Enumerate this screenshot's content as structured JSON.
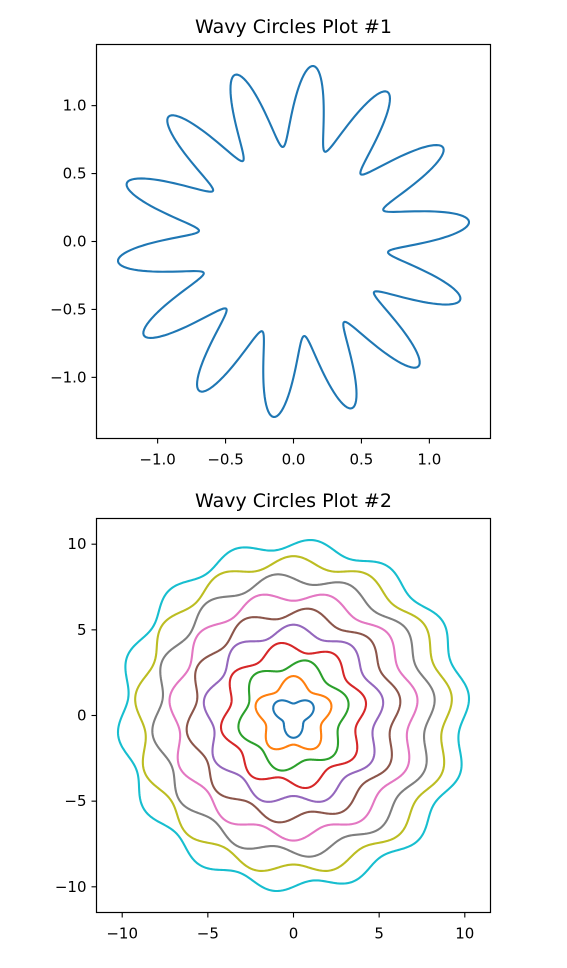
{
  "chart_data": [
    {
      "type": "line",
      "title": "Wavy Circles Plot #1",
      "xlabel": "",
      "ylabel": "",
      "xlim": [
        -1.45,
        1.45
      ],
      "ylim": [
        -1.45,
        1.45
      ],
      "xticks": [
        -1.0,
        -0.5,
        0.0,
        0.5,
        1.0
      ],
      "yticks": [
        -1.0,
        -0.5,
        0.0,
        0.5,
        1.0
      ],
      "xtick_labels": [
        "−1.0",
        "−0.5",
        "0.0",
        "0.5",
        "1.0"
      ],
      "ytick_labels": [
        "−1.0",
        "−0.5",
        "0.0",
        "0.5",
        "1.0"
      ],
      "aspect": "equal",
      "grid": false,
      "series": [
        {
          "radius": 1.0,
          "amplitude": 0.3,
          "waves": 14,
          "color": "#1f77b4"
        }
      ]
    },
    {
      "type": "line",
      "title": "Wavy Circles Plot #2",
      "xlabel": "",
      "ylabel": "",
      "xlim": [
        -11.5,
        11.5
      ],
      "ylim": [
        -11.5,
        11.5
      ],
      "xticks": [
        -10,
        -5,
        0,
        5,
        10
      ],
      "yticks": [
        -10,
        -5,
        0,
        5,
        10
      ],
      "xtick_labels": [
        "−10",
        "−5",
        "0",
        "5",
        "10"
      ],
      "ytick_labels": [
        "−10",
        "−5",
        "0",
        "5",
        "10"
      ],
      "aspect": "equal",
      "grid": false,
      "series": [
        {
          "radius": 1,
          "amplitude": 0.3,
          "waves": 3,
          "color": "#1f77b4"
        },
        {
          "radius": 2,
          "amplitude": 0.3,
          "waves": 5,
          "color": "#ff7f0e"
        },
        {
          "radius": 3,
          "amplitude": 0.3,
          "waves": 6,
          "color": "#2ca02c"
        },
        {
          "radius": 4,
          "amplitude": 0.3,
          "waves": 8,
          "color": "#d62728"
        },
        {
          "radius": 5,
          "amplitude": 0.3,
          "waves": 9,
          "color": "#9467bd"
        },
        {
          "radius": 6,
          "amplitude": 0.3,
          "waves": 10,
          "color": "#8c564b"
        },
        {
          "radius": 7,
          "amplitude": 0.3,
          "waves": 11,
          "color": "#e377c2"
        },
        {
          "radius": 8,
          "amplitude": 0.3,
          "waves": 12,
          "color": "#7f7f7f"
        },
        {
          "radius": 9,
          "amplitude": 0.3,
          "waves": 13,
          "color": "#bcbd22"
        },
        {
          "radius": 10,
          "amplitude": 0.3,
          "waves": 14,
          "color": "#17becf"
        }
      ]
    }
  ]
}
